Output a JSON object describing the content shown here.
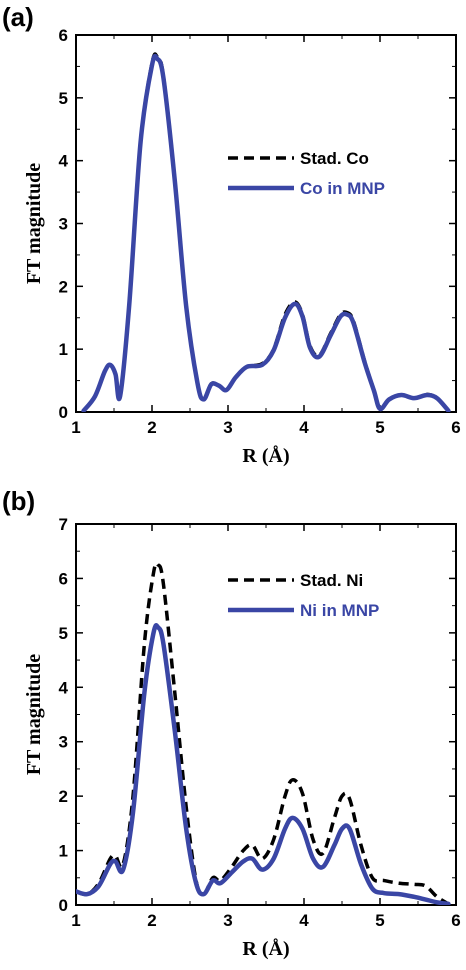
{
  "chart_data": [
    {
      "panel_label": "(a)",
      "type": "line",
      "xlabel": "R (Å)",
      "ylabel": "FT magnitude",
      "xlim": [
        1,
        6
      ],
      "ylim": [
        0,
        6
      ],
      "xticks": [
        "1",
        "2",
        "3",
        "4",
        "5",
        "6"
      ],
      "yticks": [
        "0",
        "1",
        "2",
        "3",
        "4",
        "5",
        "6"
      ],
      "legend_position": "right",
      "series": [
        {
          "name": "Stad. Co",
          "color": "#000000",
          "style": "dashed",
          "x": [
            1.1,
            1.25,
            1.38,
            1.45,
            1.52,
            1.58,
            1.7,
            1.85,
            2.0,
            2.07,
            2.15,
            2.3,
            2.45,
            2.6,
            2.68,
            2.78,
            2.88,
            2.98,
            3.1,
            3.25,
            3.45,
            3.6,
            3.75,
            3.88,
            3.98,
            4.08,
            4.2,
            4.35,
            4.48,
            4.57,
            4.65,
            4.8,
            4.92,
            5.0,
            5.12,
            5.28,
            5.45,
            5.62,
            5.75,
            5.9
          ],
          "y": [
            0.02,
            0.25,
            0.65,
            0.75,
            0.6,
            0.25,
            1.7,
            4.3,
            5.55,
            5.65,
            5.35,
            3.7,
            1.7,
            0.45,
            0.2,
            0.45,
            0.42,
            0.35,
            0.55,
            0.72,
            0.77,
            1.0,
            1.55,
            1.75,
            1.55,
            1.05,
            0.9,
            1.25,
            1.55,
            1.58,
            1.45,
            0.8,
            0.35,
            0.05,
            0.2,
            0.27,
            0.22,
            0.28,
            0.22,
            0.02
          ]
        },
        {
          "name": "Co in MNP",
          "color": "#3a46a5",
          "style": "solid",
          "x": [
            1.1,
            1.25,
            1.38,
            1.45,
            1.52,
            1.58,
            1.7,
            1.85,
            2.0,
            2.07,
            2.15,
            2.3,
            2.45,
            2.6,
            2.68,
            2.78,
            2.88,
            2.98,
            3.1,
            3.25,
            3.45,
            3.6,
            3.75,
            3.88,
            3.98,
            4.08,
            4.2,
            4.35,
            4.48,
            4.57,
            4.65,
            4.8,
            4.92,
            5.0,
            5.12,
            5.28,
            5.45,
            5.62,
            5.75,
            5.9
          ],
          "y": [
            0.02,
            0.25,
            0.65,
            0.75,
            0.6,
            0.25,
            1.7,
            4.3,
            5.52,
            5.62,
            5.32,
            3.68,
            1.68,
            0.45,
            0.2,
            0.44,
            0.42,
            0.35,
            0.55,
            0.72,
            0.75,
            0.98,
            1.5,
            1.72,
            1.52,
            1.02,
            0.88,
            1.22,
            1.52,
            1.55,
            1.42,
            0.78,
            0.34,
            0.05,
            0.2,
            0.27,
            0.22,
            0.27,
            0.22,
            0.02
          ]
        }
      ]
    },
    {
      "panel_label": "(b)",
      "type": "line",
      "xlabel": "R (Å)",
      "ylabel": "FT magnitude",
      "xlim": [
        1,
        6
      ],
      "ylim": [
        0,
        7
      ],
      "xticks": [
        "1",
        "2",
        "3",
        "4",
        "5",
        "6"
      ],
      "yticks": [
        "0",
        "1",
        "2",
        "3",
        "4",
        "5",
        "6",
        "7"
      ],
      "legend_position": "right",
      "series": [
        {
          "name": "Stad. Ni",
          "color": "#000000",
          "style": "dashed",
          "x": [
            1.0,
            1.15,
            1.3,
            1.45,
            1.52,
            1.62,
            1.75,
            1.9,
            2.02,
            2.08,
            2.15,
            2.3,
            2.45,
            2.58,
            2.68,
            2.8,
            2.9,
            3.05,
            3.2,
            3.32,
            3.45,
            3.6,
            3.75,
            3.85,
            3.98,
            4.12,
            4.25,
            4.4,
            4.5,
            4.6,
            4.75,
            4.9,
            5.05,
            5.25,
            5.45,
            5.6,
            5.75,
            5.9
          ],
          "y": [
            0.25,
            0.2,
            0.4,
            0.85,
            0.9,
            0.75,
            2.0,
            4.8,
            6.1,
            6.25,
            5.9,
            3.9,
            1.8,
            0.45,
            0.2,
            0.5,
            0.45,
            0.7,
            1.0,
            1.1,
            0.85,
            1.2,
            2.0,
            2.3,
            2.05,
            1.2,
            0.95,
            1.6,
            2.0,
            1.95,
            1.1,
            0.5,
            0.45,
            0.4,
            0.38,
            0.35,
            0.15,
            0.02
          ]
        },
        {
          "name": "Ni in MNP",
          "color": "#3a46a5",
          "style": "solid",
          "x": [
            1.0,
            1.15,
            1.3,
            1.45,
            1.52,
            1.62,
            1.75,
            1.9,
            2.02,
            2.08,
            2.15,
            2.3,
            2.45,
            2.58,
            2.68,
            2.8,
            2.9,
            3.05,
            3.2,
            3.32,
            3.45,
            3.6,
            3.75,
            3.85,
            3.98,
            4.12,
            4.25,
            4.4,
            4.5,
            4.6,
            4.75,
            4.9,
            5.05,
            5.25,
            5.45,
            5.6,
            5.75,
            5.9
          ],
          "y": [
            0.25,
            0.2,
            0.35,
            0.75,
            0.8,
            0.65,
            1.7,
            3.9,
            5.0,
            5.1,
            4.8,
            3.2,
            1.4,
            0.4,
            0.2,
            0.45,
            0.4,
            0.6,
            0.8,
            0.85,
            0.65,
            0.85,
            1.4,
            1.6,
            1.4,
            0.85,
            0.7,
            1.1,
            1.4,
            1.4,
            0.75,
            0.3,
            0.22,
            0.2,
            0.15,
            0.1,
            0.05,
            0.02
          ]
        }
      ]
    }
  ]
}
